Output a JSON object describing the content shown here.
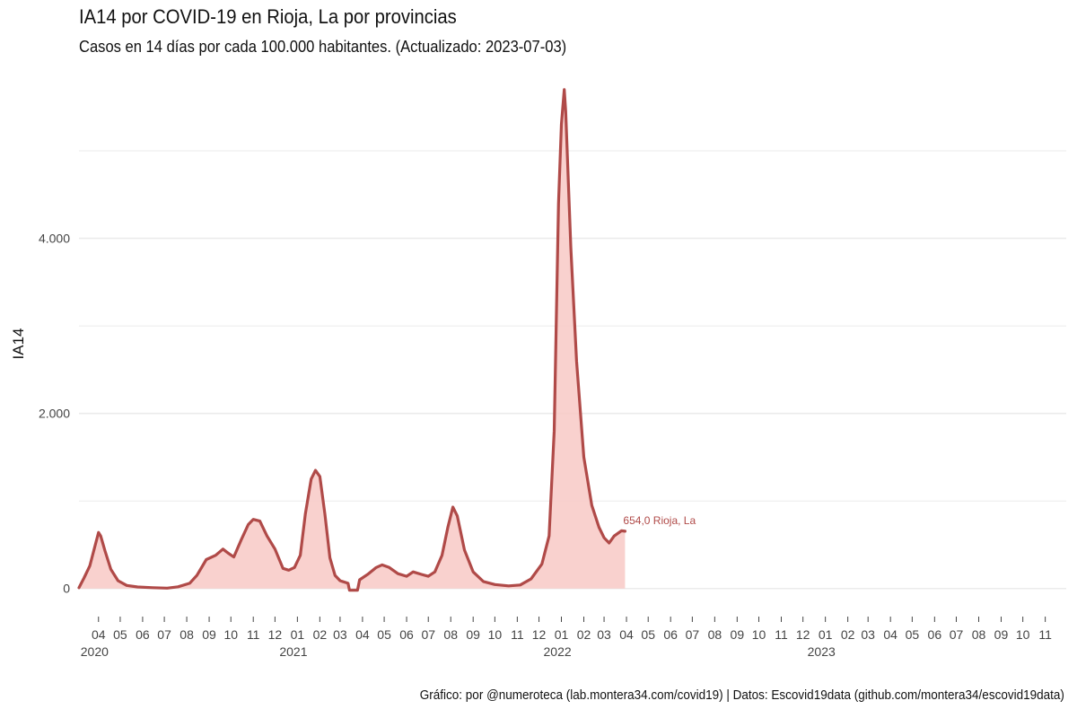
{
  "header": {
    "title": "IA14 por COVID-19 en Rioja, La por provincias",
    "subtitle": "Casos en 14 días por cada 100.000 habitantes.  (Actualizado: 2023-07-03)"
  },
  "caption": "Gráfico: por @numeroteca (lab.montera34.com/covid19) | Datos: Escovid19data (github.com/montera34/escovid19data)",
  "colors": {
    "line": "#b04a48",
    "fill": "#f8c9c6",
    "grid": "#ebebeb"
  },
  "chart_data": {
    "type": "area",
    "title": "IA14 por COVID-19 en Rioja, La por provincias",
    "subtitle": "Casos en 14 días por cada 100.000 habitantes.  (Actualizado: 2023-07-03)",
    "xlabel": "",
    "ylabel": "IA14",
    "x_range": [
      "2020-03-05",
      "2023-11-30"
    ],
    "ylim": [
      -300,
      5800
    ],
    "y_ticks": [
      0,
      2000,
      4000
    ],
    "y_tick_labels": [
      "0",
      "2.000",
      "4.000"
    ],
    "grid": true,
    "x_tick_labels": [
      "04",
      "05",
      "06",
      "07",
      "08",
      "09",
      "10",
      "11",
      "12",
      "01",
      "02",
      "03",
      "04",
      "05",
      "06",
      "07",
      "08",
      "09",
      "10",
      "11",
      "12",
      "01",
      "02",
      "03",
      "04",
      "05",
      "06",
      "07",
      "08",
      "09",
      "10",
      "11",
      "12",
      "01",
      "02",
      "03",
      "04",
      "05",
      "06",
      "07",
      "08",
      "09",
      "10",
      "11"
    ],
    "x_tick_dates": [
      "2020-04-01",
      "2020-05-01",
      "2020-06-01",
      "2020-07-01",
      "2020-08-01",
      "2020-09-01",
      "2020-10-01",
      "2020-11-01",
      "2020-12-01",
      "2021-01-01",
      "2021-02-01",
      "2021-03-01",
      "2021-04-01",
      "2021-05-01",
      "2021-06-01",
      "2021-07-01",
      "2021-08-01",
      "2021-09-01",
      "2021-10-01",
      "2021-11-01",
      "2021-12-01",
      "2022-01-01",
      "2022-02-01",
      "2022-03-01",
      "2022-04-01",
      "2022-05-01",
      "2022-06-01",
      "2022-07-01",
      "2022-08-01",
      "2022-09-01",
      "2022-10-01",
      "2022-11-01",
      "2022-12-01",
      "2023-01-01",
      "2023-02-01",
      "2023-03-01",
      "2023-04-01",
      "2023-05-01",
      "2023-06-01",
      "2023-07-01",
      "2023-08-01",
      "2023-09-01",
      "2023-10-01",
      "2023-11-01"
    ],
    "year_labels": [
      {
        "label": "2020",
        "date": "2020-04-01"
      },
      {
        "label": "2021",
        "date": "2021-01-01"
      },
      {
        "label": "2022",
        "date": "2022-01-01"
      },
      {
        "label": "2023",
        "date": "2023-01-01"
      }
    ],
    "series": [
      {
        "name": "Rioja, La",
        "end_label": "654,0  Rioja, La",
        "points": [
          [
            "2020-03-05",
            10
          ],
          [
            "2020-03-12",
            120
          ],
          [
            "2020-03-20",
            260
          ],
          [
            "2020-03-27",
            480
          ],
          [
            "2020-04-01",
            640
          ],
          [
            "2020-04-04",
            600
          ],
          [
            "2020-04-10",
            430
          ],
          [
            "2020-04-18",
            220
          ],
          [
            "2020-04-28",
            90
          ],
          [
            "2020-05-10",
            35
          ],
          [
            "2020-05-25",
            18
          ],
          [
            "2020-06-15",
            10
          ],
          [
            "2020-07-05",
            5
          ],
          [
            "2020-07-20",
            20
          ],
          [
            "2020-08-05",
            60
          ],
          [
            "2020-08-15",
            150
          ],
          [
            "2020-08-28",
            330
          ],
          [
            "2020-09-10",
            380
          ],
          [
            "2020-09-20",
            450
          ],
          [
            "2020-09-28",
            400
          ],
          [
            "2020-10-05",
            360
          ],
          [
            "2020-10-15",
            550
          ],
          [
            "2020-10-25",
            730
          ],
          [
            "2020-11-01",
            790
          ],
          [
            "2020-11-10",
            770
          ],
          [
            "2020-11-20",
            600
          ],
          [
            "2020-12-01",
            450
          ],
          [
            "2020-12-12",
            230
          ],
          [
            "2020-12-20",
            210
          ],
          [
            "2020-12-28",
            240
          ],
          [
            "2021-01-05",
            380
          ],
          [
            "2021-01-12",
            850
          ],
          [
            "2021-01-20",
            1250
          ],
          [
            "2021-01-26",
            1350
          ],
          [
            "2021-02-01",
            1280
          ],
          [
            "2021-02-08",
            850
          ],
          [
            "2021-02-15",
            350
          ],
          [
            "2021-02-22",
            150
          ],
          [
            "2021-03-01",
            90
          ],
          [
            "2021-03-12",
            60
          ],
          [
            "2021-03-14",
            -20
          ],
          [
            "2021-03-25",
            -20
          ],
          [
            "2021-03-28",
            100
          ],
          [
            "2021-04-08",
            160
          ],
          [
            "2021-04-20",
            240
          ],
          [
            "2021-04-28",
            270
          ],
          [
            "2021-05-08",
            240
          ],
          [
            "2021-05-20",
            170
          ],
          [
            "2021-06-01",
            140
          ],
          [
            "2021-06-10",
            190
          ],
          [
            "2021-06-22",
            160
          ],
          [
            "2021-07-01",
            140
          ],
          [
            "2021-07-10",
            190
          ],
          [
            "2021-07-20",
            380
          ],
          [
            "2021-07-28",
            700
          ],
          [
            "2021-08-04",
            930
          ],
          [
            "2021-08-10",
            830
          ],
          [
            "2021-08-20",
            440
          ],
          [
            "2021-09-01",
            190
          ],
          [
            "2021-09-15",
            80
          ],
          [
            "2021-10-01",
            45
          ],
          [
            "2021-10-20",
            30
          ],
          [
            "2021-11-05",
            40
          ],
          [
            "2021-11-20",
            110
          ],
          [
            "2021-12-05",
            280
          ],
          [
            "2021-12-15",
            600
          ],
          [
            "2021-12-22",
            1800
          ],
          [
            "2021-12-28",
            4400
          ],
          [
            "2022-01-01",
            5300
          ],
          [
            "2022-01-05",
            5700
          ],
          [
            "2022-01-07",
            5450
          ],
          [
            "2022-01-14",
            3900
          ],
          [
            "2022-01-22",
            2600
          ],
          [
            "2022-02-01",
            1500
          ],
          [
            "2022-02-12",
            950
          ],
          [
            "2022-02-22",
            700
          ],
          [
            "2022-03-01",
            580
          ],
          [
            "2022-03-08",
            520
          ],
          [
            "2022-03-15",
            600
          ],
          [
            "2022-03-25",
            660
          ],
          [
            "2022-03-30",
            654
          ]
        ]
      }
    ]
  }
}
